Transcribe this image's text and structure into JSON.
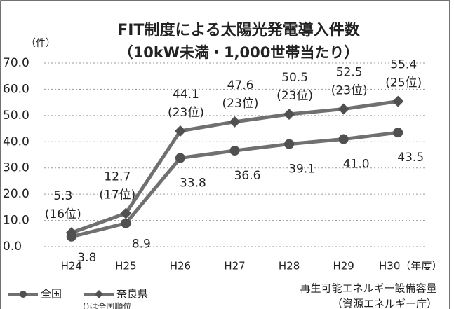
{
  "chart_data": {
    "type": "line",
    "title": "FIT制度による太陽光発電導入件数",
    "subtitle": "（10kW未満・1,000世帯当たり）",
    "y_label": "（件）",
    "categories": [
      "H24",
      "H25",
      "H26",
      "H27",
      "H28",
      "H29",
      "H30（年度）"
    ],
    "series": [
      {
        "name": "全国",
        "color": "#707070",
        "marker": "circle",
        "values": [
          3.8,
          8.9,
          33.8,
          36.6,
          39.1,
          41.0,
          43.5
        ],
        "value_labels": [
          "3.8",
          "8.9",
          "33.8",
          "36.6",
          "39.1",
          "41.0",
          "43.5"
        ]
      },
      {
        "name": "奈良県",
        "color": "#707070",
        "marker": "diamond",
        "values": [
          5.3,
          12.7,
          44.1,
          47.6,
          50.5,
          52.5,
          55.4
        ],
        "value_labels": [
          "5.3",
          "12.7",
          "44.1",
          "47.6",
          "50.5",
          "52.5",
          "55.4"
        ],
        "ranks": [
          "(16位)",
          "(17位)",
          "(23位)",
          "(23位)",
          "(23位)",
          "(23位)",
          "(25位)"
        ]
      }
    ],
    "legend_note": "()は全国順位",
    "source": [
      "再生可能エネルギー設備容量",
      "（資源エネルギー庁）"
    ],
    "ylim": [
      0,
      70
    ],
    "yticks": [
      {
        "value": 0,
        "label": "0.0"
      },
      {
        "value": 10,
        "label": "10.0"
      },
      {
        "value": 20,
        "label": "20.0"
      },
      {
        "value": 30,
        "label": "30.0"
      },
      {
        "value": 40,
        "label": "40.0"
      },
      {
        "value": 50,
        "label": "50.0"
      },
      {
        "value": 60,
        "label": "60.0"
      },
      {
        "value": 70,
        "label": "70.0"
      }
    ],
    "grid": true
  }
}
